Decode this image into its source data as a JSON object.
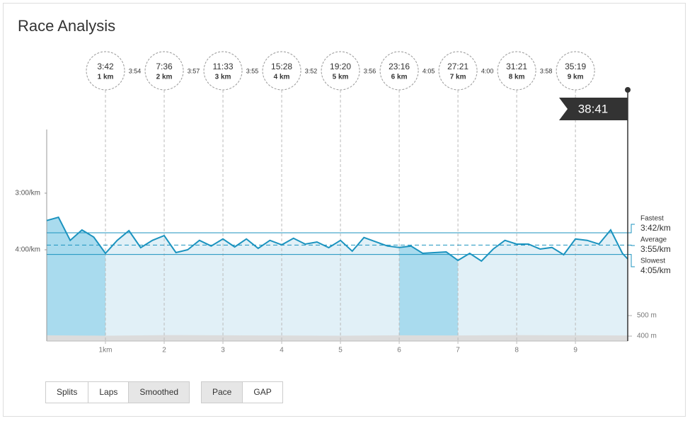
{
  "title": "Race Analysis",
  "chart_data": {
    "type": "line",
    "xlim": [
      0,
      9.89
    ],
    "xticks": [
      {
        "value": 1,
        "label": "1km"
      },
      2,
      3,
      4,
      5,
      6,
      7,
      8,
      9
    ],
    "ylim": [
      336.75,
      112.5
    ],
    "yticks": [
      {
        "value": 180,
        "label": "3:00/km"
      },
      {
        "value": 240,
        "label": "4:00/km"
      }
    ],
    "y2lim": [
      376,
      1407
    ],
    "y2ticks": [
      {
        "value": 500,
        "label": "500 m"
      },
      {
        "value": 400,
        "label": "400 m"
      }
    ],
    "x": [
      0,
      0.2,
      0.4,
      0.6,
      0.8,
      1.0,
      1.2,
      1.4,
      1.6,
      1.8,
      2.0,
      2.2,
      2.4,
      2.6,
      2.8,
      3.0,
      3.2,
      3.4,
      3.6,
      3.8,
      4.0,
      4.2,
      4.4,
      4.6,
      4.8,
      5.0,
      5.2,
      5.4,
      5.6,
      5.8,
      6.0,
      6.2,
      6.4,
      6.6,
      6.8,
      7.0,
      7.2,
      7.4,
      7.6,
      7.8,
      8.0,
      8.2,
      8.4,
      8.6,
      8.8,
      9.0,
      9.2,
      9.4,
      9.6,
      9.8,
      9.89
    ],
    "series": [
      {
        "name": "Pace",
        "color": "#1b93bf",
        "values": [
          209,
          205.5,
          230,
          219,
          226.5,
          243.75,
          230,
          219.75,
          237.75,
          230,
          225,
          243,
          240,
          230,
          236,
          228.5,
          237,
          228.5,
          238.5,
          230,
          234.75,
          227.75,
          234,
          231.75,
          237.75,
          230,
          241.5,
          227,
          231.5,
          236,
          237.5,
          236,
          243.75,
          243,
          242.25,
          251.25,
          243.75,
          252,
          239.25,
          230,
          234,
          234,
          239.25,
          237.5,
          245.25,
          228.5,
          230,
          234,
          219,
          243.75,
          249.75
        ]
      },
      {
        "name": "Elevation",
        "color": "#dcdcdc",
        "axis": "y2",
        "x": [
          0,
          1,
          2,
          3,
          4,
          5,
          6,
          7,
          8,
          9,
          9.89
        ],
        "values": [
          404,
          402,
          405,
          404,
          403,
          402,
          404,
          403,
          405,
          404,
          403
        ]
      }
    ],
    "highlighted_laps": [
      1,
      7
    ],
    "splits": [
      {
        "x": 1,
        "time": "3:42",
        "label": "1 km"
      },
      {
        "x": 2,
        "time": "7:36",
        "label": "2 km"
      },
      {
        "x": 3,
        "time": "11:33",
        "label": "3 km"
      },
      {
        "x": 4,
        "time": "15:28",
        "label": "4 km"
      },
      {
        "x": 5,
        "time": "19:20",
        "label": "5 km"
      },
      {
        "x": 6,
        "time": "23:16",
        "label": "6 km"
      },
      {
        "x": 7,
        "time": "27:21",
        "label": "7 km"
      },
      {
        "x": 8,
        "time": "31:21",
        "label": "8 km"
      },
      {
        "x": 9,
        "time": "35:19",
        "label": "9 km"
      }
    ],
    "lap_paces": [
      "3:54",
      "3:57",
      "3:55",
      "3:52",
      "3:56",
      "4:05",
      "4:00",
      "3:58"
    ],
    "finish": "38:41",
    "reference_lines": [
      {
        "name": "Fastest",
        "value": 222,
        "label": "3:42/km"
      },
      {
        "name": "Average",
        "value": 235,
        "label": "3:55/km",
        "dashed": true
      },
      {
        "name": "Slowest",
        "value": 245,
        "label": "4:05/km"
      }
    ]
  },
  "buttons": [
    [
      {
        "label": "Splits",
        "active": false
      },
      {
        "label": "Laps",
        "active": false
      },
      {
        "label": "Smoothed",
        "active": true
      }
    ],
    [
      {
        "label": "Pace",
        "active": true
      },
      {
        "label": "GAP",
        "active": false
      }
    ]
  ]
}
